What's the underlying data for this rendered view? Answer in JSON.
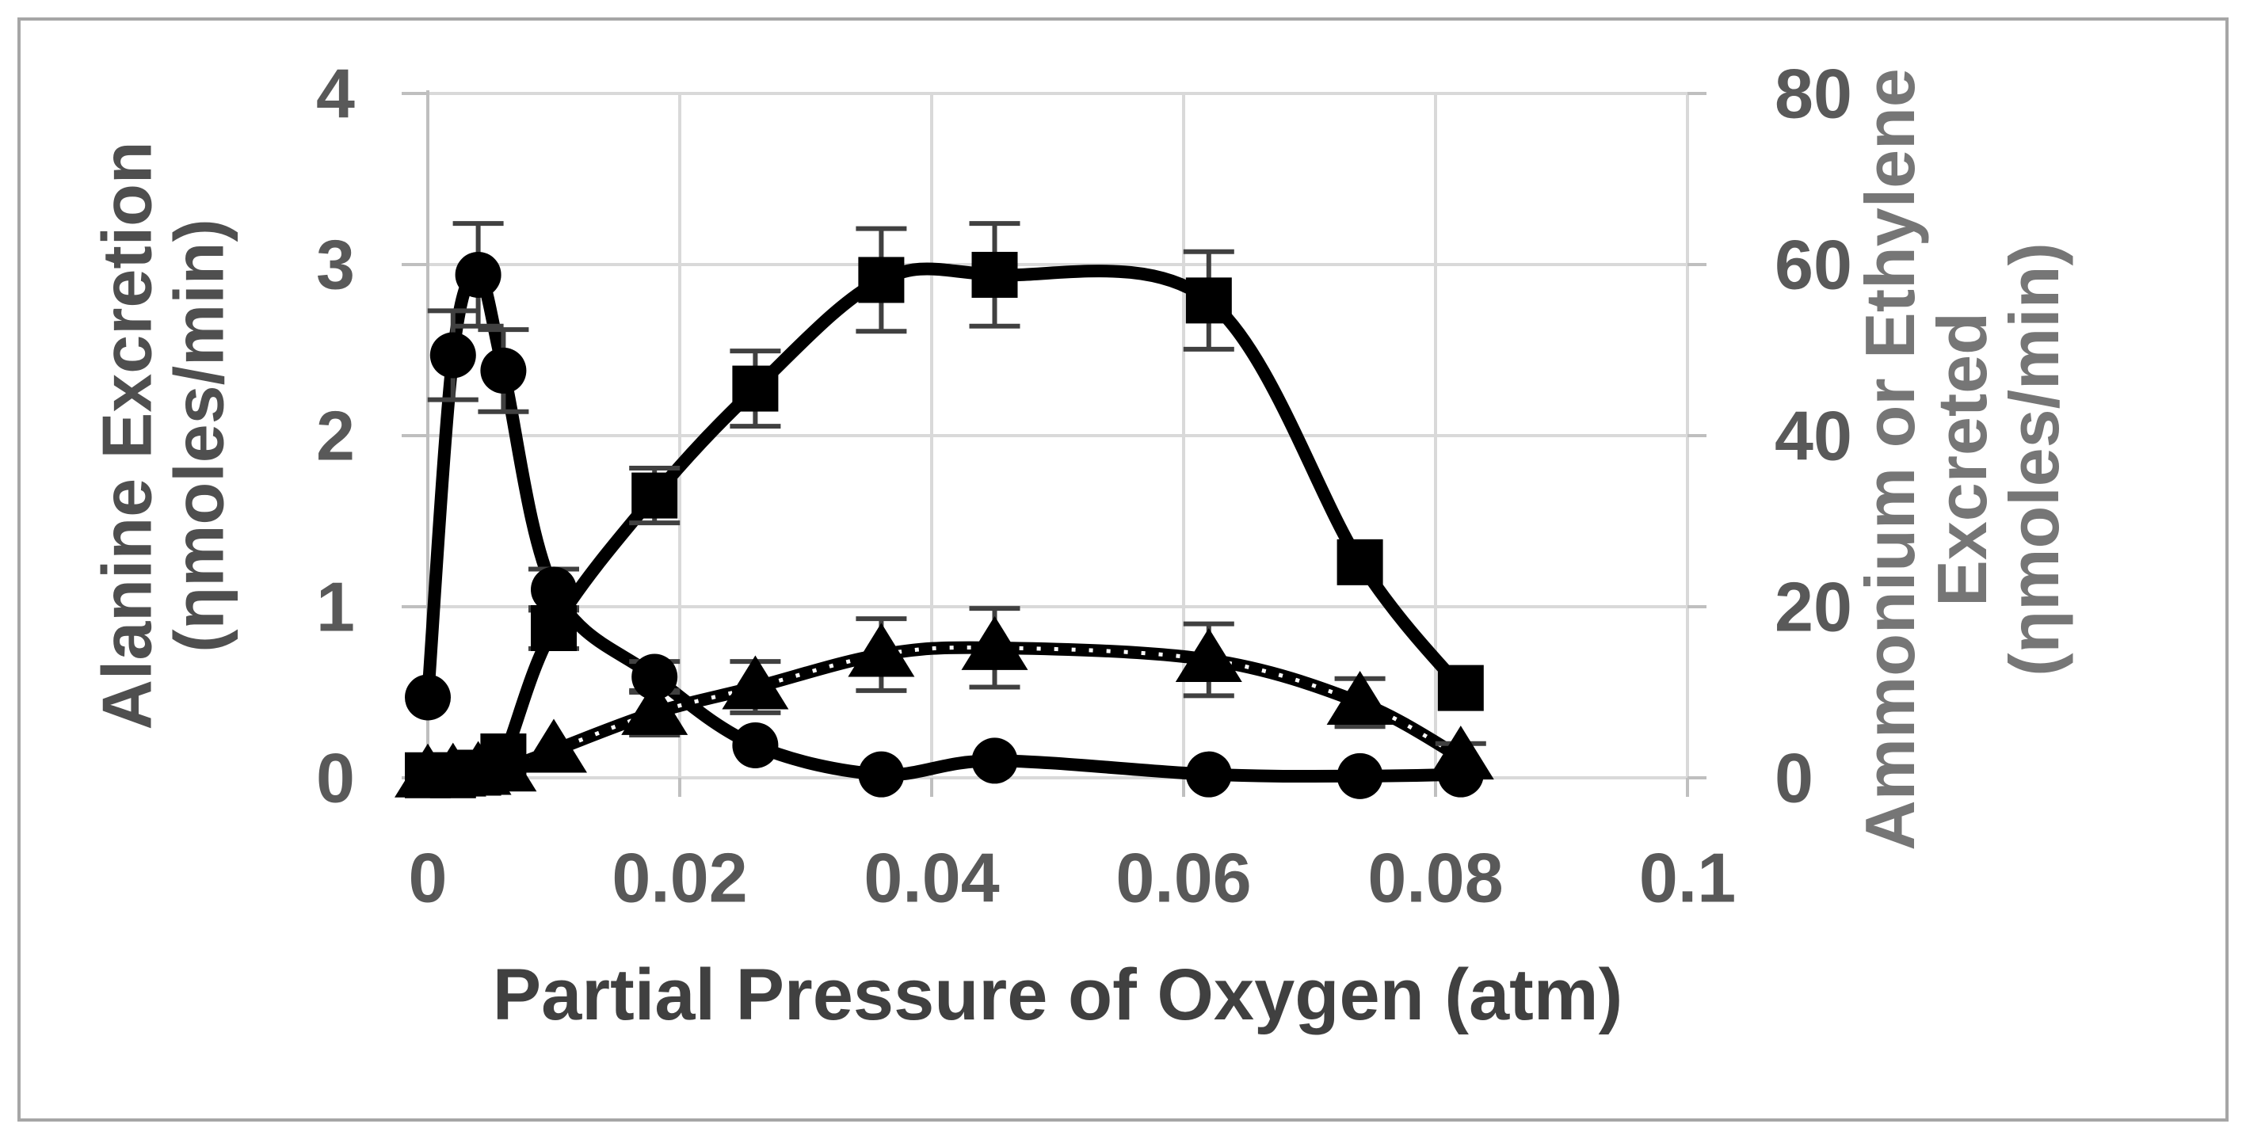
{
  "chart_data": {
    "type": "line",
    "title": "",
    "xlabel": "Partial Pressure of Oxygen (atm)",
    "ylabel_left_lines": [
      "Alanine Excretion",
      "(ηmoles/min)"
    ],
    "ylabel_right_lines": [
      "Ammonium or Ethylene",
      "Excreted",
      "(ηmoles/min)"
    ],
    "x_ticks": [
      0,
      0.02,
      0.04,
      0.06,
      0.08,
      0.1
    ],
    "x_tick_labels": [
      "0",
      "0.02",
      "0.04",
      "0.06",
      "0.08",
      "0.1"
    ],
    "y_left_axis": {
      "min": 0,
      "max": 4,
      "ticks": [
        0,
        1,
        2,
        3,
        4
      ],
      "tick_labels": [
        "0",
        "1",
        "2",
        "3",
        "4"
      ]
    },
    "y_right_axis": {
      "min": 0,
      "max": 80,
      "ticks": [
        0,
        20,
        40,
        60,
        80
      ],
      "tick_labels": [
        "0",
        "20",
        "40",
        "60",
        "80"
      ]
    },
    "xlim": [
      0,
      0.1
    ],
    "grid": true,
    "legend": "none",
    "x": [
      0,
      0.002,
      0.004,
      0.006,
      0.01,
      0.018,
      0.026,
      0.036,
      0.045,
      0.062,
      0.074,
      0.082
    ],
    "series": [
      {
        "name": "Alanine excretion",
        "marker": "circle",
        "axis": "left",
        "line_style": "solid",
        "values": [
          0.47,
          2.47,
          2.94,
          2.38,
          1.1,
          0.59,
          0.19,
          0.02,
          0.1,
          0.02,
          0.01,
          0.02
        ],
        "error_bars": [
          null,
          0.26,
          0.3,
          0.24,
          0.12,
          0.09,
          null,
          null,
          null,
          null,
          null,
          null
        ]
      },
      {
        "name": "Ammonium or Ethylene excreted (square markers)",
        "marker": "square",
        "axis": "right",
        "line_style": "solid",
        "values": [
          0.3,
          0.3,
          0.6,
          2.5,
          17.5,
          33.0,
          45.5,
          58.2,
          58.8,
          55.8,
          25.2,
          10.5
        ],
        "error_bars": [
          null,
          null,
          null,
          null,
          2.4,
          3.2,
          4.4,
          6.0,
          6.0,
          5.7,
          null,
          null
        ]
      },
      {
        "name": "Ammonium or Ethylene excreted (triangle markers)",
        "marker": "triangle",
        "axis": "right",
        "line_style": "dotted",
        "values": [
          0.3,
          0.4,
          0.6,
          1.0,
          3.2,
          7.6,
          10.6,
          14.4,
          15.2,
          13.8,
          8.8,
          2.4
        ],
        "error_bars": [
          null,
          null,
          null,
          null,
          null,
          2.6,
          3.0,
          4.2,
          4.6,
          4.2,
          2.8,
          1.6
        ]
      }
    ],
    "colors": {
      "series": "#000000",
      "gridline": "#d9d9d9",
      "axis_line": "#bfbfbf",
      "tick_label": "#595959",
      "axis_title_x": "#404040",
      "axis_title_left": "#4f4f4f",
      "axis_title_right": "#767676",
      "error_bar": "#404040",
      "border": "#a6a6a6",
      "background": "#ffffff"
    }
  }
}
